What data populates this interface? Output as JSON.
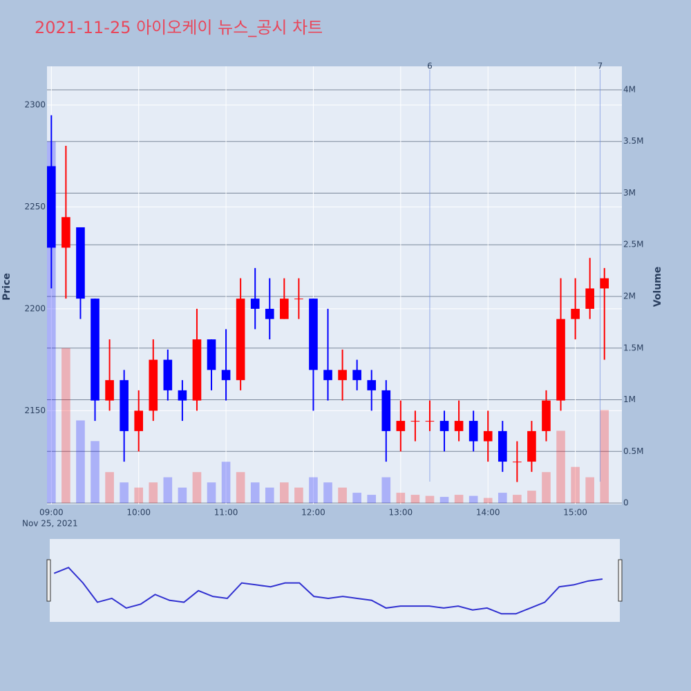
{
  "chart_data": {
    "type": "candlestick",
    "title": "2021-11-25 아이오케이 뉴스_공시 차트",
    "y_label": "Price",
    "y2_label": "Volume",
    "x_date_label": "Nov 25, 2021",
    "x": [
      "09:00",
      "09:10",
      "09:20",
      "09:30",
      "09:40",
      "09:50",
      "10:00",
      "10:10",
      "10:20",
      "10:30",
      "10:40",
      "10:50",
      "11:00",
      "11:10",
      "11:20",
      "11:30",
      "11:40",
      "11:50",
      "12:00",
      "12:10",
      "12:20",
      "12:30",
      "12:40",
      "12:50",
      "13:00",
      "13:10",
      "13:20",
      "13:30",
      "13:40",
      "13:50",
      "14:00",
      "14:10",
      "14:20",
      "14:30",
      "14:40",
      "14:50",
      "15:00",
      "15:10",
      "15:20"
    ],
    "open": [
      2270,
      2230,
      2240,
      2205,
      2155,
      2165,
      2140,
      2150,
      2175,
      2160,
      2155,
      2185,
      2170,
      2165,
      2205,
      2200,
      2195,
      2205,
      2205,
      2170,
      2165,
      2170,
      2165,
      2160,
      2140,
      2145,
      2145,
      2145,
      2140,
      2145,
      2135,
      2140,
      2125,
      2125,
      2140,
      2155,
      2195,
      2200,
      2210
    ],
    "high": [
      2295,
      2280,
      2240,
      2205,
      2185,
      2170,
      2160,
      2185,
      2180,
      2165,
      2200,
      2185,
      2190,
      2215,
      2220,
      2215,
      2215,
      2215,
      2205,
      2200,
      2180,
      2175,
      2170,
      2165,
      2155,
      2150,
      2155,
      2150,
      2155,
      2150,
      2150,
      2145,
      2135,
      2145,
      2160,
      2215,
      2215,
      2225,
      2220
    ],
    "low": [
      2210,
      2205,
      2195,
      2145,
      2150,
      2125,
      2130,
      2145,
      2155,
      2145,
      2150,
      2160,
      2155,
      2160,
      2190,
      2185,
      2195,
      2195,
      2150,
      2155,
      2155,
      2160,
      2150,
      2125,
      2130,
      2135,
      2140,
      2130,
      2135,
      2130,
      2125,
      2120,
      2115,
      2120,
      2135,
      2150,
      2185,
      2195,
      2175
    ],
    "close": [
      2230,
      2245,
      2205,
      2155,
      2165,
      2140,
      2150,
      2175,
      2160,
      2155,
      2185,
      2170,
      2165,
      2205,
      2200,
      2195,
      2205,
      2205,
      2170,
      2165,
      2170,
      2165,
      2160,
      2140,
      2145,
      2145,
      2145,
      2140,
      2145,
      2135,
      2140,
      2125,
      2125,
      2140,
      2155,
      2195,
      2200,
      2210,
      2215
    ],
    "volume": [
      3500000,
      1500000,
      800000,
      600000,
      300000,
      200000,
      150000,
      200000,
      250000,
      150000,
      300000,
      200000,
      400000,
      300000,
      200000,
      150000,
      200000,
      150000,
      250000,
      200000,
      150000,
      100000,
      80000,
      250000,
      100000,
      80000,
      70000,
      60000,
      80000,
      70000,
      50000,
      100000,
      80000,
      120000,
      300000,
      700000,
      350000,
      250000,
      900000
    ],
    "increasing_color": "#ff0000",
    "decreasing_color": "#0000ff",
    "xlim": [
      "08:57",
      "15:32"
    ],
    "xticks": [
      "09:00",
      "10:00",
      "11:00",
      "12:00",
      "13:00",
      "14:00",
      "15:00"
    ],
    "ylim": [
      2104,
      2319
    ],
    "yticks": [
      2150,
      2200,
      2250,
      2300
    ],
    "y2lim": [
      -13000,
      4227000
    ],
    "y2ticks": [
      0,
      {
        "value": 500000,
        "label": "0.5M"
      },
      {
        "value": 1000000,
        "label": "1M"
      },
      {
        "value": 1500000,
        "label": "1.5M"
      },
      {
        "value": 2000000,
        "label": "2M"
      },
      {
        "value": 2500000,
        "label": "2.5M"
      },
      {
        "value": 3000000,
        "label": "3M"
      },
      {
        "value": 3500000,
        "label": "3.5M"
      },
      {
        "value": 4000000,
        "label": "4M"
      }
    ],
    "annotations": [
      {
        "x": "13:20",
        "text": "6"
      },
      {
        "x": "15:17",
        "text": "7"
      }
    ],
    "grid": true
  }
}
